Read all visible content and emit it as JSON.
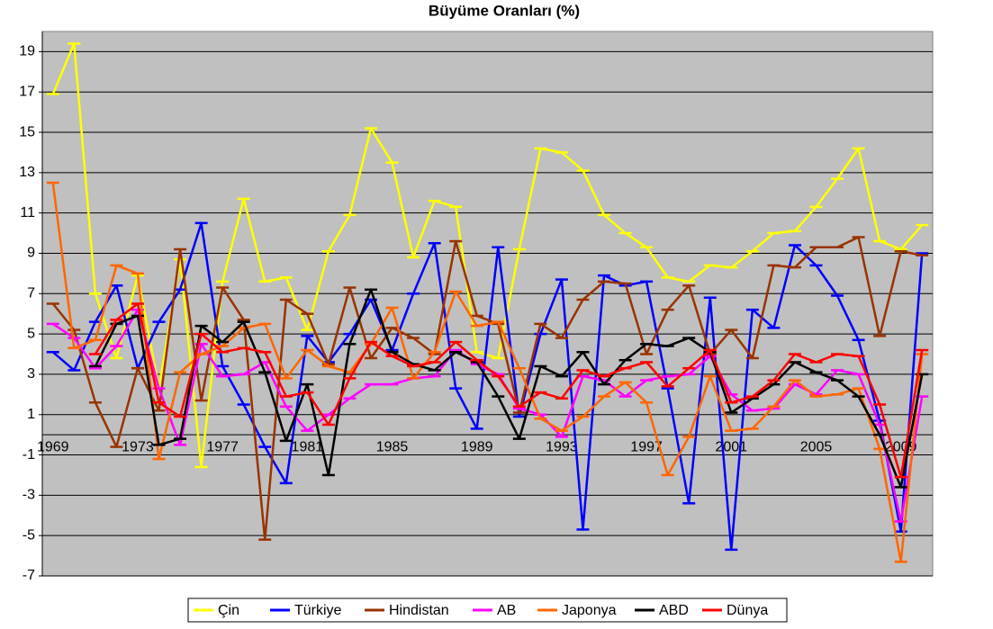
{
  "chart_data": {
    "type": "line",
    "title": "Büyüme Oranları (%)",
    "categories": [
      "1969",
      null,
      null,
      null,
      "1973",
      null,
      null,
      null,
      "1977",
      null,
      null,
      null,
      "1981",
      null,
      null,
      null,
      "1985",
      null,
      null,
      null,
      "1989",
      null,
      null,
      null,
      "1993",
      null,
      null,
      null,
      "1997",
      null,
      null,
      null,
      "2001",
      null,
      null,
      null,
      "2005",
      null,
      null,
      null,
      "2009",
      null
    ],
    "series": [
      {
        "name": "Çin",
        "color": "#ffff00",
        "values": [
          16.9,
          19.4,
          7.0,
          3.8,
          7.9,
          2.3,
          8.7,
          -1.6,
          7.6,
          11.7,
          7.6,
          7.8,
          5.2,
          9.1,
          10.9,
          15.2,
          13.5,
          8.8,
          11.6,
          11.3,
          4.1,
          3.8,
          9.2,
          14.2,
          14.0,
          13.1,
          10.9,
          10.0,
          9.3,
          7.8,
          7.6,
          8.4,
          8.3,
          9.1,
          10.0,
          10.1,
          11.3,
          12.7,
          14.2,
          9.6,
          9.2,
          10.4
        ]
      },
      {
        "name": "Türkiye",
        "color": "#0000ff",
        "values": [
          4.1,
          3.2,
          5.6,
          7.4,
          3.3,
          5.6,
          7.2,
          10.5,
          3.4,
          1.5,
          -0.6,
          -2.4,
          4.9,
          3.6,
          5.0,
          6.7,
          4.2,
          7.0,
          9.5,
          2.3,
          0.3,
          9.3,
          0.9,
          5.0,
          7.7,
          -4.7,
          7.9,
          7.4,
          7.6,
          2.3,
          -3.4,
          6.8,
          -5.7,
          6.2,
          5.3,
          9.4,
          8.4,
          6.9,
          4.7,
          0.7,
          -4.8,
          9.0
        ]
      },
      {
        "name": "Hindistan",
        "color": "#993300",
        "values": [
          6.5,
          5.2,
          1.6,
          -0.6,
          3.3,
          1.2,
          9.2,
          1.7,
          7.3,
          5.7,
          -5.2,
          6.7,
          6.0,
          3.5,
          7.3,
          3.8,
          5.3,
          4.8,
          4.0,
          9.6,
          5.9,
          5.5,
          1.1,
          5.5,
          4.8,
          6.7,
          7.6,
          7.5,
          4.0,
          6.2,
          7.4,
          4.0,
          5.2,
          3.8,
          8.4,
          8.3,
          9.3,
          9.3,
          9.8,
          4.9,
          9.1,
          8.9
        ]
      },
      {
        "name": "AB",
        "color": "#ff00ff",
        "values": [
          5.5,
          4.8,
          3.3,
          4.4,
          6.2,
          2.3,
          -0.5,
          4.5,
          2.9,
          3.0,
          3.6,
          1.4,
          0.2,
          1.0,
          1.8,
          2.5,
          2.5,
          2.8,
          2.9,
          4.2,
          3.5,
          3.0,
          1.3,
          1.0,
          -0.1,
          2.9,
          2.7,
          1.9,
          2.7,
          2.9,
          3.0,
          3.9,
          2.0,
          1.2,
          1.3,
          2.5,
          2.0,
          3.2,
          3.0,
          0.5,
          -4.3,
          1.9
        ]
      },
      {
        "name": "Japonya",
        "color": "#ff6600",
        "values": [
          12.5,
          4.3,
          4.7,
          8.4,
          8.0,
          -1.2,
          3.1,
          4.0,
          4.4,
          5.3,
          5.5,
          2.8,
          4.2,
          3.4,
          3.1,
          4.5,
          6.3,
          2.8,
          4.1,
          7.1,
          5.4,
          5.6,
          3.3,
          0.8,
          0.2,
          0.9,
          1.9,
          2.6,
          1.6,
          -2.0,
          -0.1,
          2.9,
          0.2,
          0.3,
          1.4,
          2.7,
          1.9,
          2.0,
          2.3,
          -0.7,
          -6.3,
          4.0
        ]
      },
      {
        "name": "ABD",
        "color": "#000000",
        "values": [
          null,
          null,
          3.4,
          5.5,
          5.9,
          -0.5,
          -0.2,
          5.4,
          4.6,
          5.6,
          3.1,
          -0.3,
          2.5,
          -2.0,
          4.5,
          7.2,
          4.1,
          3.5,
          3.2,
          4.1,
          3.6,
          1.9,
          -0.2,
          3.4,
          2.9,
          4.1,
          2.5,
          3.7,
          4.5,
          4.4,
          4.8,
          4.1,
          1.1,
          1.8,
          2.5,
          3.6,
          3.1,
          2.7,
          1.9,
          0.0,
          -2.6,
          3.0
        ]
      },
      {
        "name": "Dünya",
        "color": "#ff0000",
        "values": [
          null,
          null,
          4.0,
          5.7,
          6.5,
          1.6,
          0.9,
          5.0,
          4.1,
          4.3,
          4.1,
          1.9,
          2.1,
          0.5,
          2.8,
          4.6,
          3.9,
          3.4,
          3.6,
          4.6,
          3.7,
          2.9,
          1.4,
          2.1,
          1.8,
          3.2,
          2.9,
          3.3,
          3.6,
          2.4,
          3.3,
          4.2,
          1.6,
          1.9,
          2.7,
          4.0,
          3.6,
          4.0,
          3.9,
          1.5,
          -2.1,
          4.2
        ]
      }
    ],
    "ylim": [
      -7,
      20
    ],
    "yticks": [
      19,
      17,
      15,
      13,
      11,
      9,
      7,
      5,
      3,
      1,
      -1,
      -3,
      -5,
      -7
    ],
    "grid": true,
    "legend": "bottom",
    "plot_background": "#c0c0c0"
  }
}
